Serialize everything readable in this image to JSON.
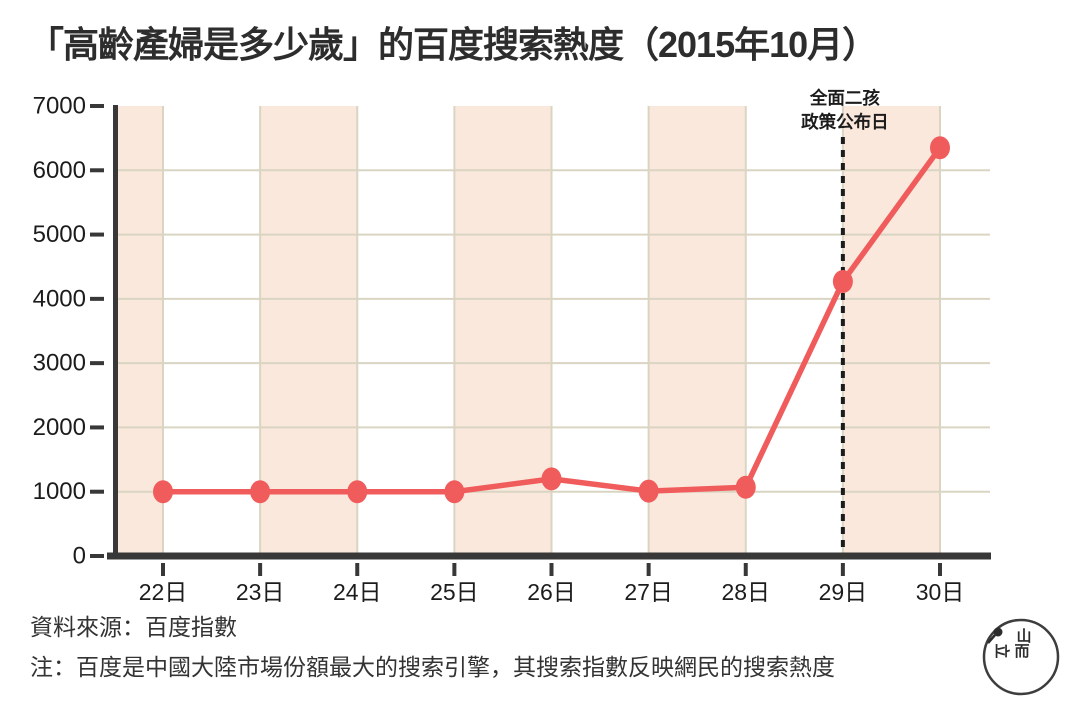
{
  "title": "「高齡產婦是多少歲」的百度搜索熱度（2015年10月）",
  "chart_data": {
    "type": "line",
    "title": "「高齡產婦是多少歲」的百度搜索熱度（2015年10月）",
    "x_categories": [
      "22日",
      "23日",
      "24日",
      "25日",
      "26日",
      "27日",
      "28日",
      "29日",
      "30日"
    ],
    "values": [
      1000,
      1000,
      1000,
      1000,
      1200,
      1010,
      1070,
      4270,
      6350
    ],
    "ylim": [
      0,
      7000
    ],
    "yticks": [
      0,
      1000,
      2000,
      3000,
      4000,
      5000,
      6000,
      7000
    ],
    "grid": true,
    "legend": "none",
    "annotation": {
      "lines": [
        "全面二孩",
        "政策公布日"
      ],
      "x_index": 7
    },
    "bands": [
      [
        null,
        0
      ],
      [
        1,
        2
      ],
      [
        3,
        4
      ],
      [
        5,
        6
      ],
      [
        7,
        8
      ]
    ],
    "colors": {
      "line": "#f05c5c",
      "band": "#fae8dc",
      "grid": "#d9d5c2",
      "axis": "#383838",
      "text": "#1c1c1c"
    }
  },
  "footer": {
    "source": "資料來源：百度指數",
    "note": "注：百度是中國大陸市場份額最大的搜索引擎，其搜索指數反映網民的搜索熱度"
  },
  "logo": {
    "name": "initium-media-logo",
    "glyphs": {
      "shan": "山",
      "er": "而",
      "li": "立"
    }
  }
}
